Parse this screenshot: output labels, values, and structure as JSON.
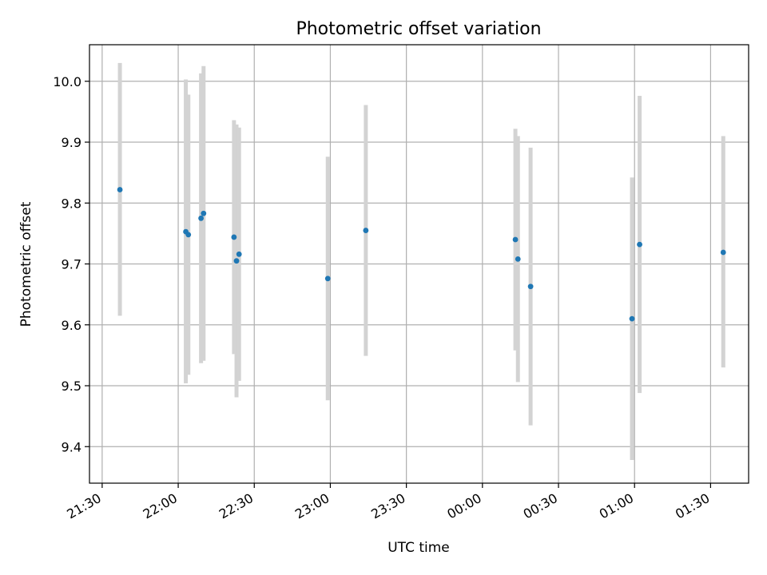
{
  "chart_data": {
    "type": "scatter",
    "title": "Photometric offset variation",
    "xlabel": "UTC time",
    "ylabel": "Photometric offset",
    "grid": true,
    "x_axis": "time",
    "xlim": [
      "21:25",
      "01:45"
    ],
    "ylim": [
      9.34,
      10.06
    ],
    "xticks": [
      "21:30",
      "22:00",
      "22:30",
      "23:00",
      "23:30",
      "00:00",
      "00:30",
      "01:00",
      "01:30"
    ],
    "yticks": [
      "9.4",
      "9.5",
      "9.6",
      "9.7",
      "9.8",
      "9.9",
      "10.0"
    ],
    "colors": {
      "marker": "#1f77b4",
      "errorbar": "#d3d3d3"
    },
    "points": [
      {
        "x": "21:37",
        "y": 9.822,
        "ylow": 9.615,
        "yhigh": 10.03
      },
      {
        "x": "22:03",
        "y": 9.753,
        "ylow": 9.504,
        "yhigh": 10.003
      },
      {
        "x": "22:04",
        "y": 9.748,
        "ylow": 9.518,
        "yhigh": 9.978
      },
      {
        "x": "22:09",
        "y": 9.775,
        "ylow": 9.537,
        "yhigh": 10.013
      },
      {
        "x": "22:10",
        "y": 9.783,
        "ylow": 9.541,
        "yhigh": 10.025
      },
      {
        "x": "22:22",
        "y": 9.744,
        "ylow": 9.552,
        "yhigh": 9.936
      },
      {
        "x": "22:23",
        "y": 9.705,
        "ylow": 9.481,
        "yhigh": 9.929
      },
      {
        "x": "22:24",
        "y": 9.716,
        "ylow": 9.508,
        "yhigh": 9.924
      },
      {
        "x": "22:59",
        "y": 9.676,
        "ylow": 9.476,
        "yhigh": 9.876
      },
      {
        "x": "23:14",
        "y": 9.755,
        "ylow": 9.549,
        "yhigh": 9.961
      },
      {
        "x": "00:13",
        "y": 9.74,
        "ylow": 9.558,
        "yhigh": 9.922
      },
      {
        "x": "00:14",
        "y": 9.708,
        "ylow": 9.506,
        "yhigh": 9.91
      },
      {
        "x": "00:19",
        "y": 9.663,
        "ylow": 9.435,
        "yhigh": 9.891
      },
      {
        "x": "00:59",
        "y": 9.61,
        "ylow": 9.378,
        "yhigh": 9.842
      },
      {
        "x": "01:02",
        "y": 9.732,
        "ylow": 9.488,
        "yhigh": 9.976
      },
      {
        "x": "01:35",
        "y": 9.719,
        "ylow": 9.53,
        "yhigh": 9.91
      }
    ]
  }
}
